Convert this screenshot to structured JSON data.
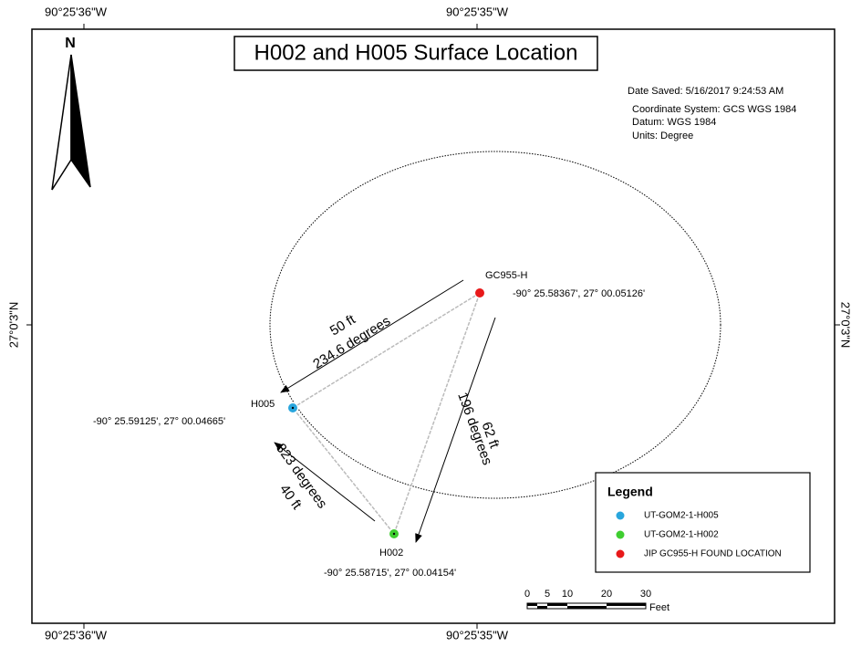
{
  "frame": {
    "top_labels": [
      "90°25'36\"W",
      "90°25'35\"W"
    ],
    "bottom_labels": [
      "90°25'36\"W",
      "90°25'35\"W"
    ],
    "left_label": "27°0'3\"N",
    "right_label": "27°0'3\"N"
  },
  "title": "H002 and H005 Surface Location",
  "north": "N",
  "info": {
    "date_saved": "Date Saved: 5/16/2017 9:24:53 AM",
    "coordinate_system": "Coordinate System: GCS WGS 1984",
    "datum": "Datum: WGS 1984",
    "units": "Units: Degree"
  },
  "points": [
    {
      "name": "GC955-H",
      "coords": "-90° 25.58367', 27° 00.05126'"
    },
    {
      "name": "H005",
      "coords": "-90° 25.59125', 27° 00.04665'"
    },
    {
      "name": "H002",
      "coords": "-90°  25.58715', 27°  00.04154'"
    }
  ],
  "measurements": [
    {
      "distance": "50 ft",
      "bearing": "234.6 degrees"
    },
    {
      "distance": "62 ft",
      "bearing": "196 degrees"
    },
    {
      "distance": "40 ft",
      "bearing": "323 degrees"
    }
  ],
  "legend": {
    "title": "Legend",
    "items": [
      "UT-GOM2-1-H005",
      "UT-GOM2-1-H002",
      "JIP GC955-H FOUND LOCATION"
    ]
  },
  "scale_bar": {
    "labels": [
      "0",
      "5",
      "10",
      "20",
      "30"
    ],
    "unit": "Feet"
  }
}
